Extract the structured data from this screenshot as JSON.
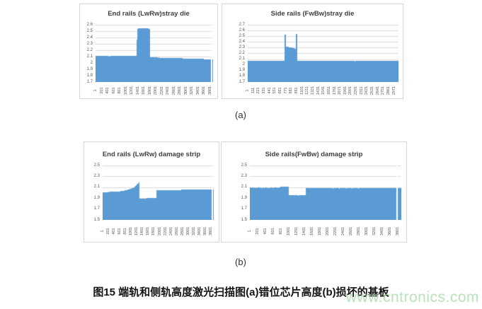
{
  "figure": {
    "label_a": "(a)",
    "label_b": "(b)",
    "caption": "图15 端轨和侧轨高度激光扫描图(a)错位芯片高度(b)损坏的基板",
    "watermark": "www.cntronics.com"
  },
  "colors": {
    "bar": "#5b9bd5",
    "gridline": "#d9d9d9",
    "panel_border": "#d6d6d6",
    "tick_label": "#595959",
    "title": "#3f3f3f",
    "caption": "#141414",
    "watermark": "#a7dba7"
  },
  "chart_data": [
    {
      "type": "area",
      "title": "End rails (LwRw)stray die",
      "grid": true,
      "legend": false,
      "x_max": 3900,
      "x_ticks": [
        1,
        201,
        401,
        601,
        801,
        1001,
        1201,
        1401,
        1601,
        1801,
        2001,
        2201,
        2401,
        2601,
        2801,
        3001,
        3201,
        3401,
        3601,
        3801
      ],
      "y_min": 1.7,
      "y_max": 2.6,
      "y_tick_values": [
        1.7,
        1.8,
        1.9,
        2.0,
        2.1,
        2.2,
        2.3,
        2.4,
        2.5,
        2.6
      ],
      "y_tick_labels": [
        "1.7",
        "1.8",
        "1.9",
        "2",
        "2.1",
        "2.2",
        "2.3",
        "2.4",
        "2.5",
        "2.6"
      ],
      "noise": 0.008,
      "segments": [
        {
          "from": 1,
          "to": 1370,
          "start": 2.1,
          "end": 2.1
        },
        {
          "from": 1371,
          "to": 1392,
          "start": 2.36,
          "end": 2.36
        },
        {
          "from": 1393,
          "to": 1580,
          "start": 2.53,
          "end": 2.54
        },
        {
          "from": 1581,
          "to": 1790,
          "start": 2.54,
          "end": 2.53
        },
        {
          "from": 1791,
          "to": 3900,
          "start": 2.08,
          "end": 2.05
        }
      ],
      "gaps": [
        [
          3840,
          3860
        ]
      ]
    },
    {
      "type": "area",
      "title": "Side rails (FwBw)stray die",
      "grid": true,
      "legend": false,
      "x_max": 3060,
      "x_ticks": [
        1,
        111,
        221,
        331,
        441,
        551,
        661,
        771,
        881,
        991,
        1101,
        1211,
        1321,
        1431,
        1541,
        1651,
        1761,
        1871,
        1981,
        2091,
        2201,
        2311,
        2421,
        2531,
        2641,
        2751,
        2861,
        2971
      ],
      "y_min": 1.7,
      "y_max": 2.7,
      "y_tick_values": [
        1.7,
        1.8,
        1.9,
        2.0,
        2.1,
        2.2,
        2.3,
        2.4,
        2.5,
        2.6,
        2.7
      ],
      "y_tick_labels": [
        "1.7",
        "1.8",
        "1.9",
        "2",
        "2.1",
        "2.2",
        "2.3",
        "2.4",
        "2.5",
        "2.6",
        "2.7"
      ],
      "noise": 0.013,
      "segments": [
        {
          "from": 1,
          "to": 748,
          "start": 2.06,
          "end": 2.06
        },
        {
          "from": 749,
          "to": 772,
          "start": 2.52,
          "end": 2.52
        },
        {
          "from": 773,
          "to": 980,
          "start": 2.31,
          "end": 2.27
        },
        {
          "from": 981,
          "to": 1005,
          "start": 2.53,
          "end": 2.53
        },
        {
          "from": 1006,
          "to": 3060,
          "start": 2.06,
          "end": 2.06
        }
      ],
      "gaps": []
    },
    {
      "type": "area",
      "title": "End rails (LwRw) damage strip",
      "grid": true,
      "legend": false,
      "x_max": 3900,
      "x_ticks": [
        1,
        201,
        401,
        601,
        801,
        1001,
        1201,
        1401,
        1601,
        1801,
        2001,
        2201,
        2401,
        2601,
        2801,
        3001,
        3201,
        3401,
        3601,
        3801
      ],
      "y_min": 1.5,
      "y_max": 2.5,
      "y_tick_values": [
        1.5,
        1.7,
        1.9,
        2.1,
        2.3,
        2.5
      ],
      "y_tick_labels": [
        "1.5",
        "1.7",
        "1.9",
        "2.1",
        "2.3",
        "2.5"
      ],
      "noise": 0.008,
      "segments": [
        {
          "from": 1,
          "to": 700,
          "start": 2.0,
          "end": 2.02
        },
        {
          "from": 701,
          "to": 1100,
          "start": 2.02,
          "end": 2.08
        },
        {
          "from": 1101,
          "to": 1285,
          "start": 2.08,
          "end": 2.18
        },
        {
          "from": 1286,
          "to": 1310,
          "start": 1.86,
          "end": 1.88
        },
        {
          "from": 1311,
          "to": 1900,
          "start": 1.88,
          "end": 1.9
        },
        {
          "from": 1901,
          "to": 3900,
          "start": 2.04,
          "end": 2.05
        }
      ],
      "gaps": [
        [
          3850,
          3868
        ]
      ]
    },
    {
      "type": "area",
      "title": "Side rails(FwBw) damage strip",
      "grid": true,
      "legend": false,
      "x_max": 3900,
      "x_ticks": [
        1,
        201,
        401,
        601,
        801,
        1001,
        1201,
        1401,
        1601,
        1801,
        2001,
        2201,
        2401,
        2601,
        2801,
        3001,
        3201,
        3401,
        3601,
        3801
      ],
      "y_min": 1.5,
      "y_max": 2.5,
      "y_tick_values": [
        1.5,
        1.7,
        1.9,
        2.1,
        2.3,
        2.5
      ],
      "y_tick_labels": [
        "1.5",
        "1.7",
        "1.9",
        "2.1",
        "2.3",
        "2.5"
      ],
      "noise": 0.012,
      "segments": [
        {
          "from": 1,
          "to": 800,
          "start": 2.08,
          "end": 2.08
        },
        {
          "from": 801,
          "to": 995,
          "start": 2.1,
          "end": 2.1
        },
        {
          "from": 996,
          "to": 1450,
          "start": 1.94,
          "end": 1.94
        },
        {
          "from": 1451,
          "to": 3900,
          "start": 2.07,
          "end": 2.07
        }
      ],
      "gaps": [
        [
          3780,
          3800
        ]
      ]
    }
  ]
}
